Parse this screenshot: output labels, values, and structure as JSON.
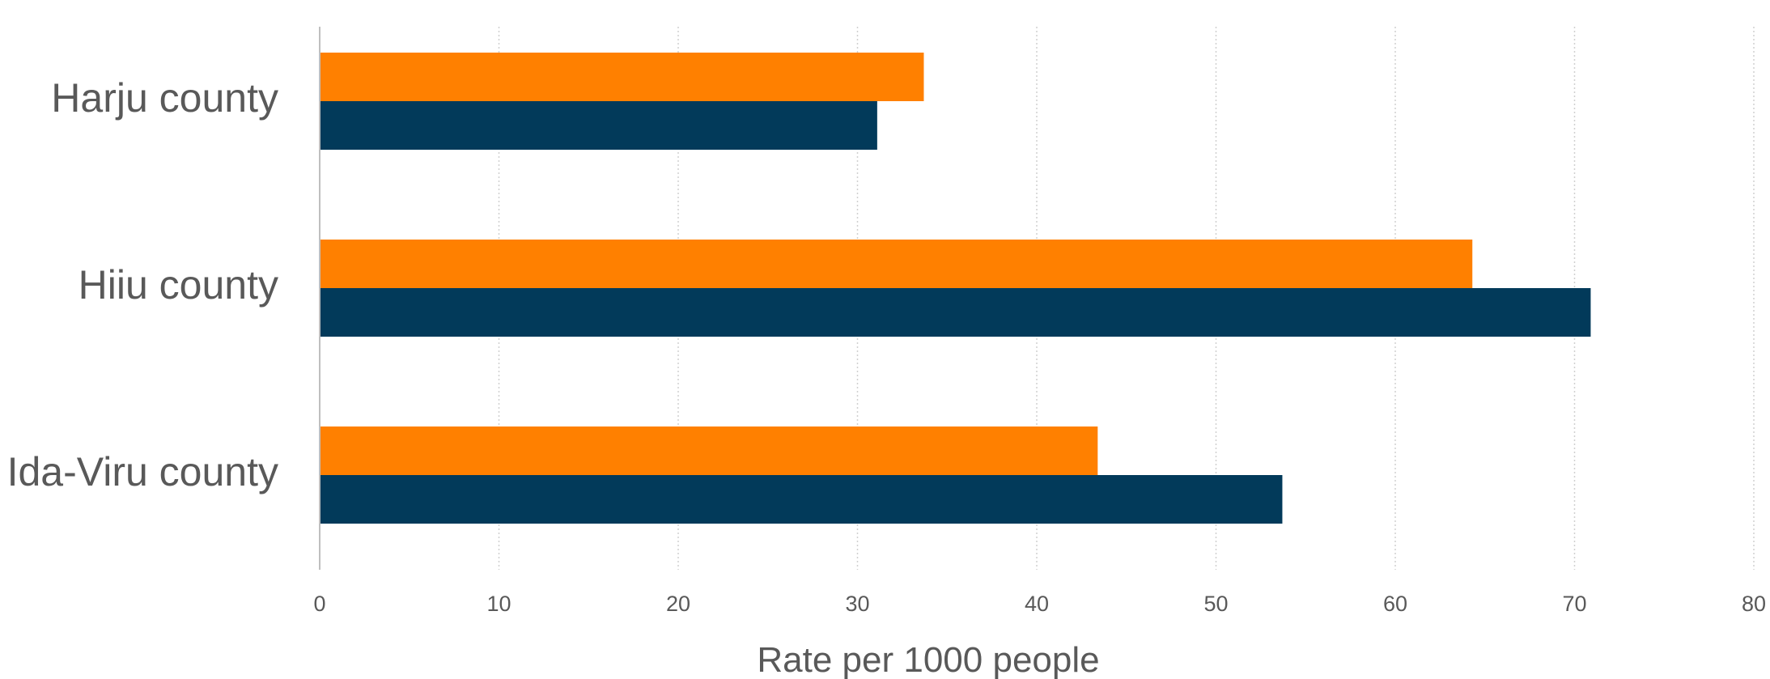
{
  "chart_data": {
    "type": "bar",
    "orientation": "horizontal",
    "categories": [
      "Harju county",
      "Hiiu county",
      "Ida-Viru county"
    ],
    "series": [
      {
        "values": [
          33.7,
          64.3,
          43.4
        ],
        "color": "#FF8000"
      },
      {
        "values": [
          31.1,
          70.9,
          53.7
        ],
        "color": "#023A5A"
      }
    ],
    "xlabel": "Rate per 1000 people",
    "ylabel": "",
    "xlim": [
      0,
      80
    ],
    "xticks": [
      "0",
      "10",
      "20",
      "30",
      "40",
      "50",
      "60",
      "70",
      "80"
    ],
    "grid": true,
    "legend": "none"
  },
  "colors": {
    "text": "#595959",
    "grid": "#D0D0D0",
    "axis": "#BFBFBF"
  }
}
